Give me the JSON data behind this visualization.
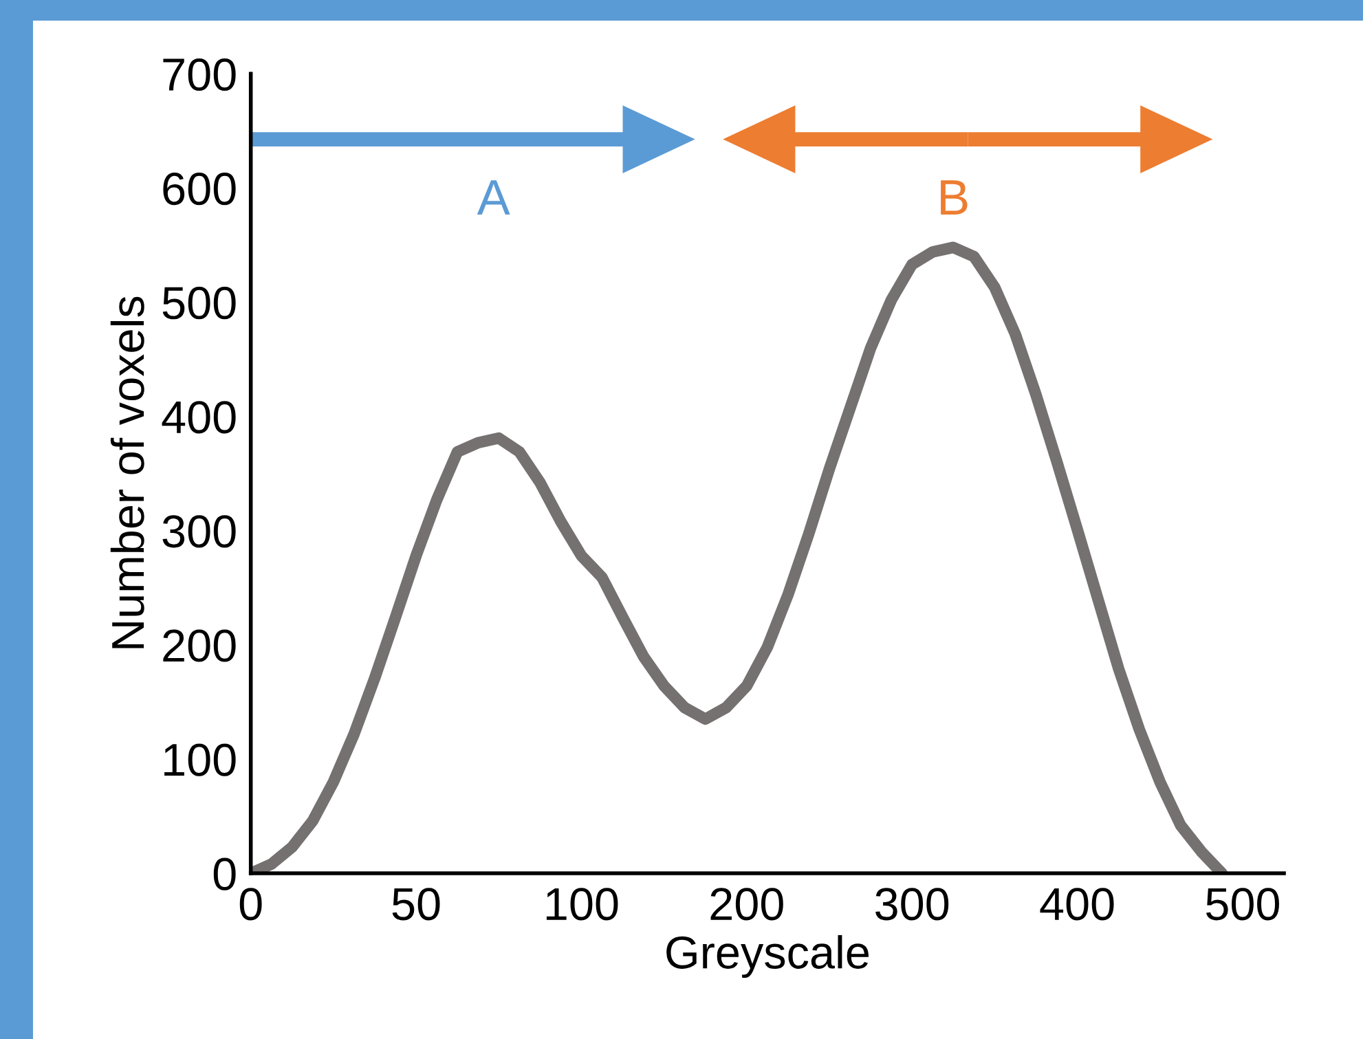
{
  "chart_data": {
    "type": "line",
    "xlabel": "Greyscale",
    "ylabel": "Number of voxels",
    "categories": [
      "0",
      null,
      null,
      null,
      null,
      null,
      null,
      null,
      "50",
      null,
      null,
      null,
      null,
      null,
      null,
      null,
      "100",
      null,
      null,
      null,
      null,
      null,
      null,
      null,
      "200",
      null,
      null,
      null,
      null,
      null,
      null,
      null,
      "300",
      null,
      null,
      null,
      null,
      null,
      null,
      null,
      "400",
      null,
      null,
      null,
      null,
      null,
      null,
      null,
      "500",
      null,
      null
    ],
    "series": [
      {
        "color": "#767171",
        "values": [
          0,
          8,
          23,
          46,
          80,
          122,
          171,
          224,
          278,
          327,
          369,
          377,
          381,
          369,
          342,
          308,
          278,
          259,
          224,
          190,
          164,
          145,
          135,
          145,
          164,
          198,
          244,
          297,
          354,
          407,
          460,
          502,
          533,
          544,
          548,
          540,
          513,
          472,
          419,
          361,
          301,
          240,
          179,
          126,
          80,
          42,
          19,
          0,
          null,
          null,
          null
        ]
      }
    ],
    "ylim": [
      0,
      700
    ],
    "yticks": [
      0,
      100,
      200,
      300,
      400,
      500,
      600,
      700
    ],
    "grid": false,
    "legend": false,
    "line_style": "solid",
    "annotations": [
      "A",
      "B"
    ]
  }
}
